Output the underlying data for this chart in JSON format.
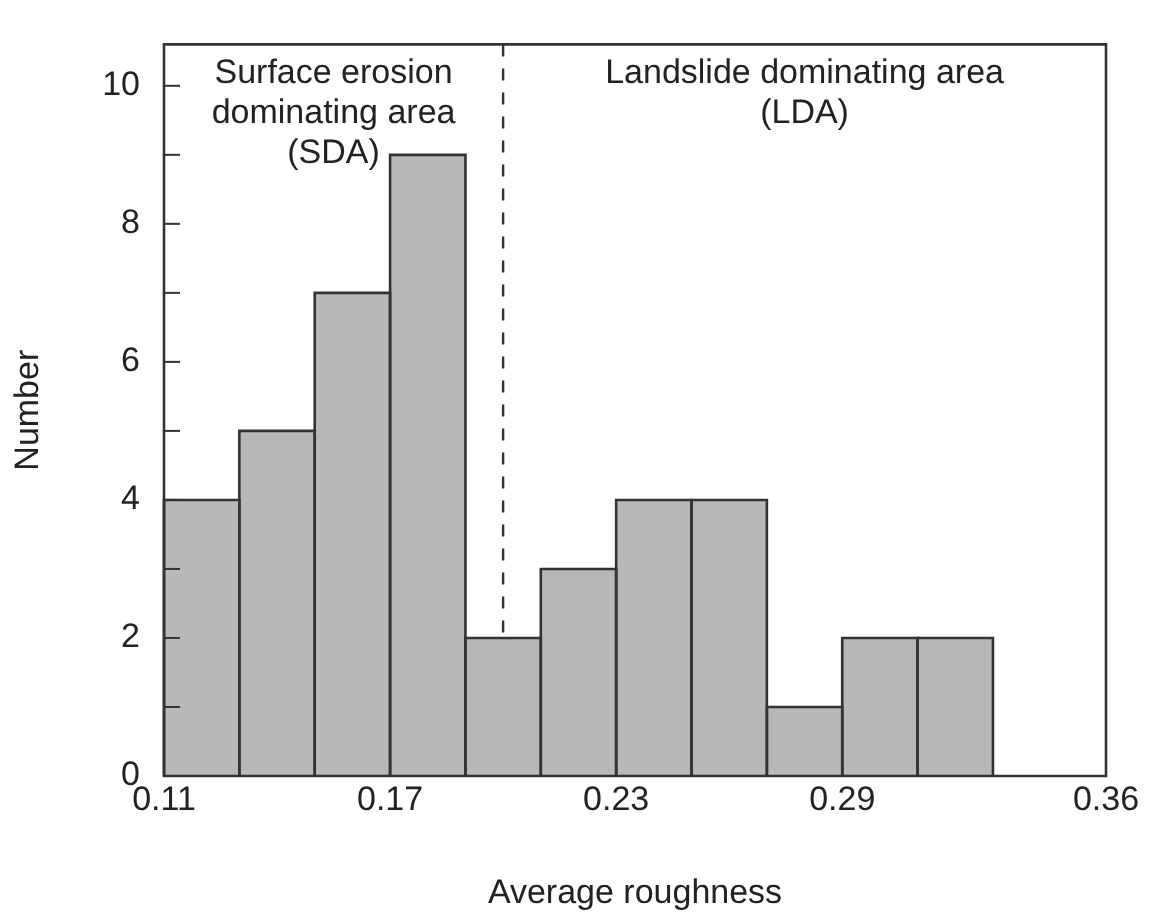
{
  "chart_data": {
    "type": "histogram",
    "xlabel": "Average roughness",
    "ylabel": "Number",
    "bins": [
      0.11,
      0.13,
      0.15,
      0.17,
      0.19,
      0.21,
      0.23,
      0.25,
      0.27,
      0.29,
      0.31,
      0.33
    ],
    "values": [
      4,
      5,
      7,
      9,
      2,
      3,
      4,
      4,
      1,
      2,
      2
    ],
    "color": "#b8b8b8",
    "xlim": [
      0.11,
      0.36
    ],
    "xticks": [
      0.11,
      0.17,
      0.23,
      0.29,
      0.36
    ],
    "ylim": [
      0,
      10.6
    ],
    "yticks": [
      0,
      {
        "value": 1,
        "label": null
      },
      2,
      {
        "value": 3,
        "label": null
      },
      4,
      {
        "value": 5,
        "label": null
      },
      6,
      {
        "value": 7,
        "label": null
      },
      8,
      {
        "value": 9,
        "label": null
      },
      10
    ],
    "grid": false,
    "legend": false,
    "ref_lines": [
      {
        "axis": "x",
        "value": 0.2,
        "line_style": "dashed",
        "color": "#333333"
      }
    ],
    "annotations": [
      "Surface erosion\ndominating area\n(SDA)",
      "Landslide dominating area\n(LDA)"
    ]
  }
}
